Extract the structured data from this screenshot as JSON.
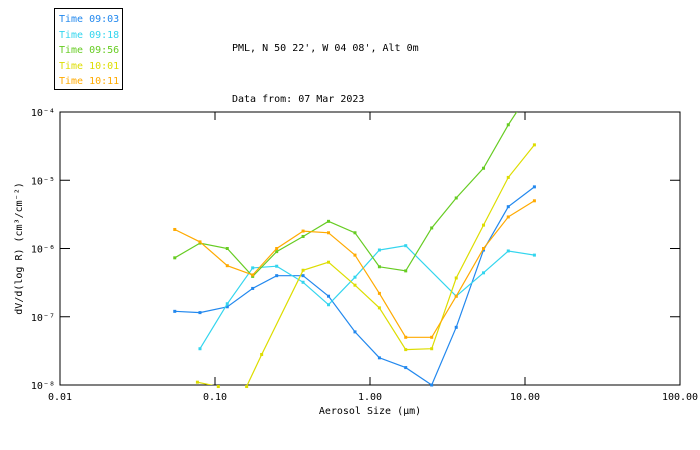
{
  "header": {
    "title": "PML, N 50 22', W 04 08', Alt 0m",
    "subtitle": "Data from: 07 Mar 2023"
  },
  "legend": {
    "items": [
      {
        "label": "Time 09:03",
        "color": "#2288ee"
      },
      {
        "label": "Time 09:18",
        "color": "#33d5ee"
      },
      {
        "label": "Time 09:56",
        "color": "#66cc22"
      },
      {
        "label": "Time 10:01",
        "color": "#dddd00"
      },
      {
        "label": "Time 10:11",
        "color": "#ffaa00"
      }
    ]
  },
  "chart_data": {
    "type": "line",
    "title": "PML, N 50 22', W 04 08', Alt 0m",
    "subtitle": "Data from: 07 Mar 2023",
    "xlabel": "Aerosol Size (μm)",
    "ylabel": "dV/d(log R) (cm³/cm⁻²)",
    "xscale": "log",
    "yscale": "log",
    "xlim": [
      0.01,
      100.0
    ],
    "ylim": [
      1e-08,
      0.0001
    ],
    "grid": false,
    "legend_position": "top-left-box",
    "x_ticks": [
      {
        "value": 0.01,
        "label": "0.01"
      },
      {
        "value": 0.1,
        "label": "0.10"
      },
      {
        "value": 1.0,
        "label": "1.00"
      },
      {
        "value": 10.0,
        "label": "10.00"
      },
      {
        "value": 100.0,
        "label": "100.00"
      }
    ],
    "y_ticks": [
      {
        "value": 0.0001,
        "label": "10⁻⁴"
      },
      {
        "value": 1e-05,
        "label": "10⁻⁵"
      },
      {
        "value": 1e-06,
        "label": "10⁻⁶"
      },
      {
        "value": 1e-07,
        "label": "10⁻⁷"
      },
      {
        "value": 1e-08,
        "label": "10⁻⁸"
      }
    ],
    "series": [
      {
        "name": "Time 09:03",
        "color": "#2288ee",
        "marker": "square",
        "points": [
          [
            0.055,
            1.2e-07
          ],
          [
            0.08,
            1.15e-07
          ],
          [
            0.12,
            1.4e-07
          ],
          [
            0.175,
            2.6e-07
          ],
          [
            0.25,
            4e-07
          ],
          [
            0.37,
            4e-07
          ],
          [
            0.54,
            2e-07
          ],
          [
            0.8,
            6e-08
          ],
          [
            1.15,
            2.5e-08
          ],
          [
            1.7,
            1.8e-08
          ],
          [
            2.5,
            1e-08
          ],
          [
            3.6,
            7e-08
          ],
          [
            5.4,
            9.5e-07
          ],
          [
            7.8,
            4.1e-06
          ],
          [
            11.5,
            8e-06
          ]
        ]
      },
      {
        "name": "Time 09:18",
        "color": "#33d5ee",
        "marker": "square",
        "points": [
          [
            0.08,
            3.4e-08
          ],
          [
            0.12,
            1.55e-07
          ],
          [
            0.175,
            5.2e-07
          ],
          [
            0.25,
            5.5e-07
          ],
          [
            0.37,
            3.2e-07
          ],
          [
            0.54,
            1.5e-07
          ],
          [
            0.8,
            3.8e-07
          ],
          [
            1.15,
            9.5e-07
          ],
          [
            1.7,
            1.1e-06
          ],
          [
            3.6,
            2e-07
          ],
          [
            5.4,
            4.4e-07
          ],
          [
            7.8,
            9.2e-07
          ],
          [
            11.5,
            8e-07
          ]
        ]
      },
      {
        "name": "Time 09:56",
        "color": "#66cc22",
        "marker": "square",
        "points": [
          [
            0.055,
            7.3e-07
          ],
          [
            0.08,
            1.2e-06
          ],
          [
            0.12,
            1e-06
          ],
          [
            0.175,
            3.9e-07
          ],
          [
            0.25,
            9e-07
          ],
          [
            0.37,
            1.5e-06
          ],
          [
            0.54,
            2.5e-06
          ],
          [
            0.8,
            1.7e-06
          ],
          [
            1.15,
            5.4e-07
          ],
          [
            1.7,
            4.7e-07
          ],
          [
            2.5,
            2e-06
          ],
          [
            3.6,
            5.5e-06
          ],
          [
            5.4,
            1.5e-05
          ],
          [
            7.8,
            6.5e-05
          ],
          [
            11.5,
            0.00025
          ]
        ]
      },
      {
        "name": "Time 10:01",
        "color": "#dddd00",
        "marker": "square",
        "points": [
          [
            0.077,
            1.1e-08
          ],
          [
            0.105,
            9.5e-09
          ],
          [
            0.16,
            9.5e-09
          ],
          [
            0.2,
            2.8e-08
          ],
          [
            0.37,
            4.8e-07
          ],
          [
            0.54,
            6.3e-07
          ],
          [
            0.8,
            2.9e-07
          ],
          [
            1.15,
            1.35e-07
          ],
          [
            1.7,
            3.3e-08
          ],
          [
            2.5,
            3.4e-08
          ],
          [
            3.6,
            3.7e-07
          ],
          [
            5.4,
            2.2e-06
          ],
          [
            7.8,
            1.1e-05
          ],
          [
            11.5,
            3.3e-05
          ]
        ]
      },
      {
        "name": "Time 10:11",
        "color": "#ffaa00",
        "marker": "square",
        "points": [
          [
            0.055,
            1.9e-06
          ],
          [
            0.08,
            1.25e-06
          ],
          [
            0.12,
            5.6e-07
          ],
          [
            0.175,
            4.1e-07
          ],
          [
            0.25,
            1e-06
          ],
          [
            0.37,
            1.8e-06
          ],
          [
            0.54,
            1.7e-06
          ],
          [
            0.8,
            8e-07
          ],
          [
            1.15,
            2.2e-07
          ],
          [
            1.7,
            5e-08
          ],
          [
            2.5,
            5e-08
          ],
          [
            3.6,
            2e-07
          ],
          [
            5.4,
            1e-06
          ],
          [
            7.8,
            2.9e-06
          ],
          [
            11.5,
            5e-06
          ]
        ]
      }
    ]
  }
}
